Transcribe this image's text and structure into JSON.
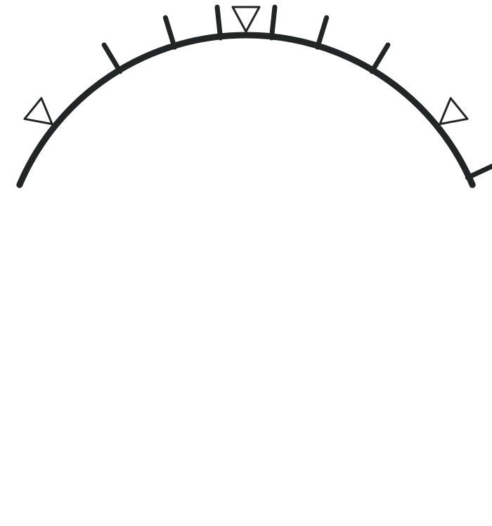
{
  "diagram": {
    "type": "arc-scale",
    "colors": {
      "stroke": "#222525",
      "background": "#ffffff"
    },
    "arc": {
      "start_angle_deg": 157,
      "end_angle_deg": 23
    },
    "ticks": [
      {
        "angle_deg": 121
      },
      {
        "angle_deg": 107
      },
      {
        "angle_deg": 96
      },
      {
        "angle_deg": 84
      },
      {
        "angle_deg": 73
      },
      {
        "angle_deg": 59
      },
      {
        "angle_deg": 25
      }
    ],
    "markers": [
      {
        "angle_deg": 141,
        "shape": "outline-triangle"
      },
      {
        "angle_deg": 90,
        "shape": "outline-triangle"
      },
      {
        "angle_deg": 39,
        "shape": "outline-triangle"
      }
    ]
  }
}
